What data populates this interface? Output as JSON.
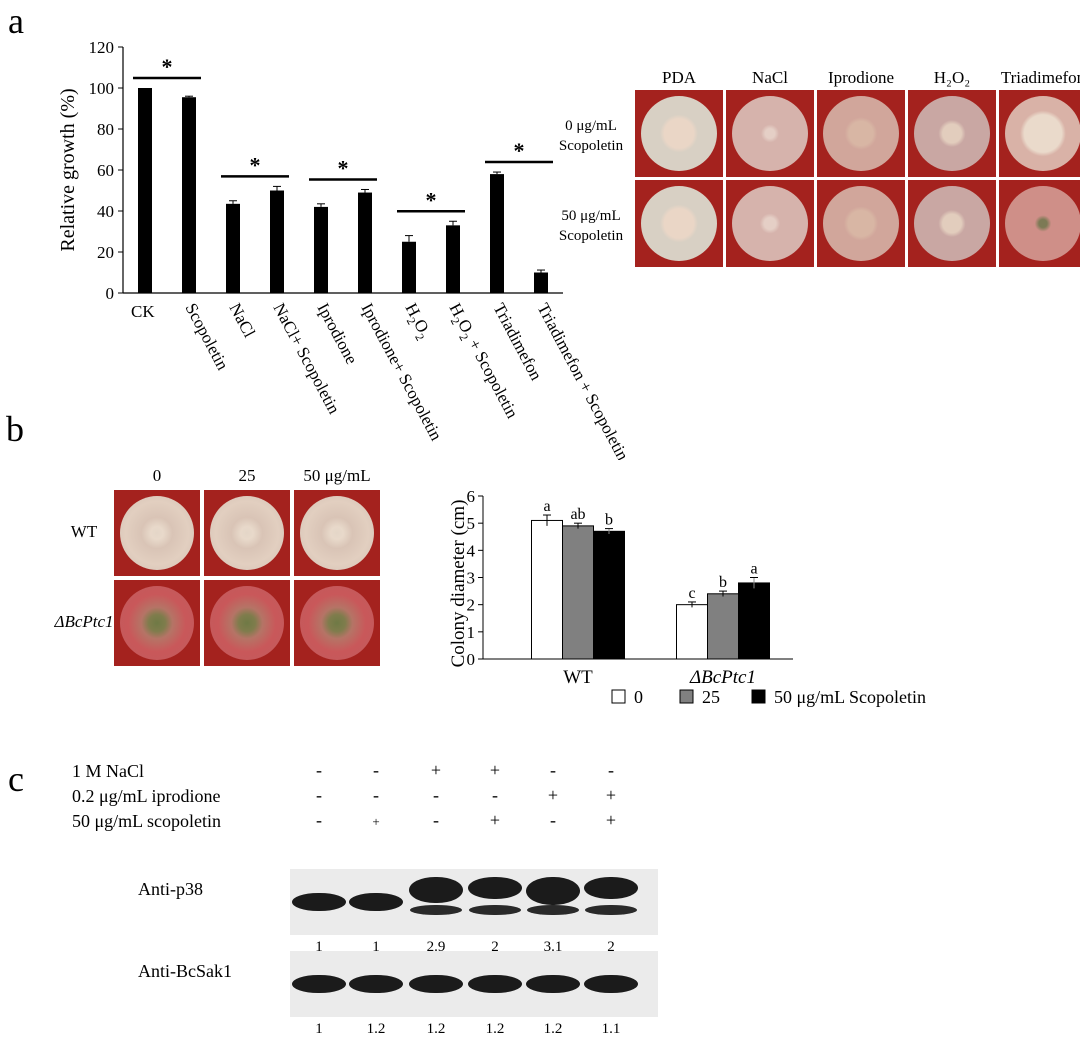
{
  "panels": {
    "a": "a",
    "b": "b",
    "c": "c"
  },
  "colors": {
    "agar": "#a4221e",
    "bar_a": "#000000",
    "series": [
      "#ffffff",
      "#808080",
      "#000000"
    ]
  },
  "chart_data": [
    {
      "type": "bar",
      "panel": "a",
      "ylabel": "Relative growth (%)",
      "ylim": [
        0,
        120
      ],
      "yticks": [
        0,
        20,
        40,
        60,
        80,
        100,
        120
      ],
      "categories": [
        "CK",
        "Scopoletin",
        "NaCl",
        "NaCl+ Scopoletin",
        "Iprodione",
        "Iprodione+ Scopoletin",
        "H2O2",
        "H2O2 + Scopoletin",
        "Triadimefon",
        "Triadimefon + Scopoletin"
      ],
      "values": [
        100,
        95.5,
        43.5,
        50,
        42,
        49,
        25,
        33,
        58,
        10
      ],
      "errors": [
        0,
        0.5,
        1.5,
        2,
        1.5,
        1.5,
        3,
        2,
        1,
        1.2
      ],
      "significance": [
        {
          "pair": [
            0,
            1
          ],
          "mark": "*"
        },
        {
          "pair": [
            2,
            3
          ],
          "mark": "*"
        },
        {
          "pair": [
            4,
            5
          ],
          "mark": "*"
        },
        {
          "pair": [
            6,
            7
          ],
          "mark": "*"
        },
        {
          "pair": [
            8,
            9
          ],
          "mark": "*"
        }
      ]
    },
    {
      "type": "bar",
      "panel": "b",
      "ylabel": "Colony diameter (cm)",
      "ylim": [
        0,
        6
      ],
      "yticks": [
        0,
        1,
        2,
        3,
        4,
        5,
        6
      ],
      "groups": [
        "WT",
        "ΔBcPtc1"
      ],
      "series": [
        {
          "name": "0",
          "values": [
            5.1,
            2.0
          ],
          "errors": [
            0.2,
            0.1
          ],
          "letters": [
            "a",
            "c"
          ]
        },
        {
          "name": "25",
          "values": [
            4.9,
            2.4
          ],
          "errors": [
            0.1,
            0.1
          ],
          "letters": [
            "ab",
            "b"
          ]
        },
        {
          "name": "50 μg/mL Scopoletin",
          "values": [
            4.7,
            2.8
          ],
          "errors": [
            0.1,
            0.2
          ],
          "letters": [
            "b",
            "a"
          ]
        }
      ],
      "legend": "bottom"
    }
  ],
  "plates_a": {
    "columns": [
      "PDA",
      "NaCl",
      "Iprodione",
      "H₂O₂",
      "Triadimefon"
    ],
    "rows": [
      [
        "0 μg/mL",
        "Scopoletin"
      ],
      [
        "50 μg/mL",
        "Scopoletin"
      ]
    ]
  },
  "plates_b": {
    "columns": [
      "0",
      "25",
      "50 μg/mL"
    ],
    "rows": [
      "WT",
      "ΔBcPtc1"
    ]
  },
  "blot": {
    "conditions": [
      {
        "label": "1 M NaCl",
        "signs": [
          "-",
          "-",
          "+",
          "+",
          "-",
          "-"
        ]
      },
      {
        "label": "0.2 μg/mL  iprodione",
        "signs": [
          "-",
          "-",
          "-",
          "-",
          "+",
          "+"
        ]
      },
      {
        "label": "50 μg/mL scopoletin",
        "signs": [
          "-",
          "+",
          "-",
          "+",
          "-",
          "+"
        ]
      }
    ],
    "antibodies": [
      {
        "label": "Anti-p38",
        "quant": [
          "1",
          "1",
          "2.9",
          "2",
          "3.1",
          "2"
        ]
      },
      {
        "label": "Anti-BcSak1",
        "quant": [
          "1",
          "1.2",
          "1.2",
          "1.2",
          "1.2",
          "1.1"
        ]
      }
    ]
  }
}
